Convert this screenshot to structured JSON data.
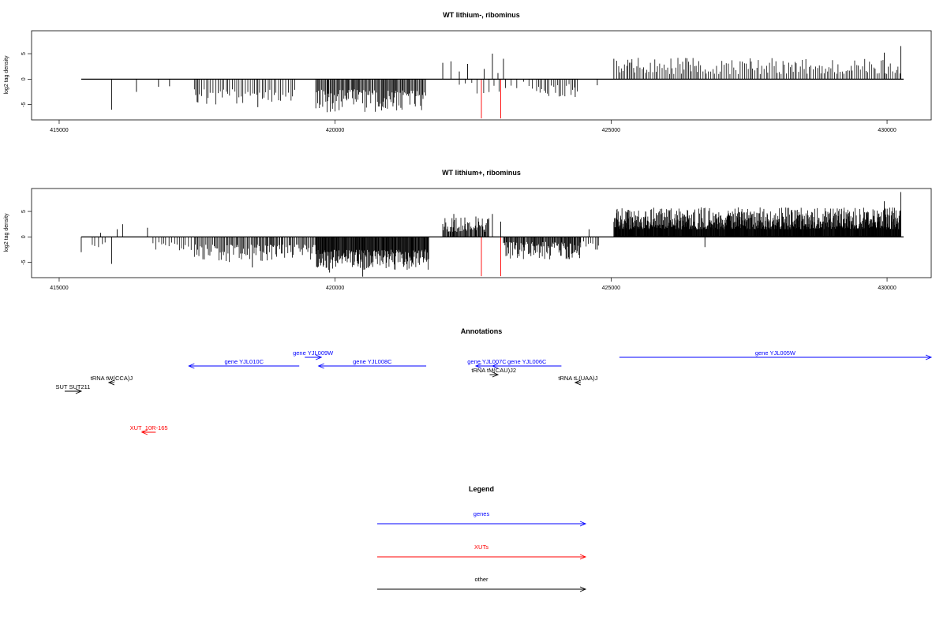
{
  "chart_data": [
    {
      "type": "bar",
      "title": "WT lithium-, ribominus",
      "ylabel": "log2 tag density",
      "xlim": [
        414500,
        430800
      ],
      "ylim": [
        -8,
        9.5
      ],
      "x_ticks": [
        415000,
        420000,
        425000,
        430000
      ],
      "x_tick_labels": [
        "415000",
        "420000",
        "425000",
        "430000"
      ],
      "y_ticks": [
        -5,
        0,
        5
      ],
      "y_tick_labels": [
        "-5",
        "0",
        "5"
      ],
      "baseline_range": [
        415400,
        430300
      ],
      "density_segments": [
        {
          "start": 417450,
          "end": 419300,
          "sign": -1,
          "min": 2.0,
          "max": 5.0,
          "step": 38
        },
        {
          "start": 419650,
          "end": 421650,
          "sign": -1,
          "min": 2.0,
          "max": 6.5,
          "step": 18
        },
        {
          "start": 422250,
          "end": 423650,
          "sign": -1,
          "min": 0.5,
          "max": 3.0,
          "step": 95
        },
        {
          "start": 423650,
          "end": 424400,
          "sign": -1,
          "min": 1.0,
          "max": 3.5,
          "step": 40
        },
        {
          "start": 425100,
          "end": 430250,
          "sign": 1,
          "min": 1.0,
          "max": 4.2,
          "step": 32
        }
      ],
      "series": [
        {
          "color": "#000000",
          "x": [
            415950,
            416400,
            416800,
            417000,
            417500,
            418600,
            419950,
            421950,
            422100,
            422250,
            422400,
            422700,
            422850,
            422950,
            423050,
            424350,
            424750,
            425050,
            429950,
            430250
          ],
          "values": [
            -6.0,
            -2.5,
            -1.5,
            -1.4,
            -4.5,
            -5.5,
            -4.8,
            3.2,
            3.5,
            1.5,
            3.0,
            2.0,
            5.0,
            1.2,
            4.0,
            -3.5,
            -1.2,
            4.0,
            5.2,
            6.5
          ]
        },
        {
          "color": "#ff0000",
          "x": [
            422650,
            423000
          ],
          "values": [
            -7.7,
            -7.7
          ]
        }
      ]
    },
    {
      "type": "bar",
      "title": "WT lithium+, ribominus",
      "ylabel": "log2 tag density",
      "xlim": [
        414500,
        430800
      ],
      "ylim": [
        -8,
        9.5
      ],
      "x_ticks": [
        415000,
        420000,
        425000,
        430000
      ],
      "x_tick_labels": [
        "415000",
        "420000",
        "425000",
        "430000"
      ],
      "y_ticks": [
        -5,
        0,
        5
      ],
      "y_tick_labels": [
        "-5",
        "0",
        "5"
      ],
      "baseline_range": [
        415400,
        430300
      ],
      "density_segments": [
        {
          "start": 415600,
          "end": 415900,
          "sign": -1,
          "min": 1.0,
          "max": 2.5,
          "step": 60
        },
        {
          "start": 416700,
          "end": 417450,
          "sign": -1,
          "min": 1.0,
          "max": 3.5,
          "step": 45
        },
        {
          "start": 417450,
          "end": 419650,
          "sign": -1,
          "min": 1.5,
          "max": 5.0,
          "step": 22
        },
        {
          "start": 419650,
          "end": 421700,
          "sign": -1,
          "min": 2.5,
          "max": 6.5,
          "step": 10
        },
        {
          "start": 421950,
          "end": 422800,
          "sign": 1,
          "min": 1.0,
          "max": 3.8,
          "step": 14
        },
        {
          "start": 423050,
          "end": 424450,
          "sign": -1,
          "min": 1.0,
          "max": 4.5,
          "step": 14
        },
        {
          "start": 424500,
          "end": 424800,
          "sign": -1,
          "min": 0.5,
          "max": 2.5,
          "step": 50
        },
        {
          "start": 425050,
          "end": 430250,
          "sign": 1,
          "min": 1.5,
          "max": 5.8,
          "step": 7
        }
      ],
      "series": [
        {
          "color": "#000000",
          "x": [
            415400,
            415750,
            415950,
            416050,
            416150,
            416600,
            418500,
            419900,
            420500,
            422150,
            422350,
            422550,
            422850,
            423000,
            424600,
            424750,
            426700,
            429950,
            430250
          ],
          "values": [
            -3.0,
            0.8,
            -5.3,
            1.5,
            2.5,
            1.8,
            -6.0,
            -7.0,
            -7.8,
            4.5,
            3.8,
            4.0,
            4.5,
            3.0,
            1.5,
            -2.5,
            -2.0,
            7.0,
            8.8
          ]
        },
        {
          "color": "#ff0000",
          "x": [
            422650,
            423000
          ],
          "values": [
            -7.7,
            -7.7
          ]
        }
      ]
    }
  ],
  "annotations": {
    "title": "Annotations",
    "features": [
      {
        "label": "gene YJL010C",
        "color": "#0000ff",
        "start": 417350,
        "end": 419350,
        "strand": "-",
        "row": 2
      },
      {
        "label": "gene YJL009W",
        "color": "#0000ff",
        "start": 419450,
        "end": 419750,
        "strand": "+",
        "row": 1
      },
      {
        "label": "gene YJL008C",
        "color": "#0000ff",
        "start": 419700,
        "end": 421650,
        "strand": "-",
        "row": 2
      },
      {
        "label": "gene YJL007C",
        "color": "#0000ff",
        "start": 422550,
        "end": 422950,
        "strand": "-",
        "row": 2
      },
      {
        "label": "gene YJL006C",
        "color": "#0000ff",
        "start": 422850,
        "end": 424100,
        "strand": "-",
        "row": 2
      },
      {
        "label": "gene YJL005W",
        "color": "#0000ff",
        "start": 425150,
        "end": 430800,
        "strand": "+",
        "row": 1
      },
      {
        "label": "tRNA tM(CAU)J2",
        "color": "#000000",
        "start": 422800,
        "end": 422950,
        "strand": "+",
        "row": 3
      },
      {
        "label": "tRNA tW(CCA)J",
        "color": "#000000",
        "start": 415900,
        "end": 416000,
        "strand": "-",
        "row": 4
      },
      {
        "label": "tRNA tL(UAA)J",
        "color": "#000000",
        "start": 424350,
        "end": 424450,
        "strand": "-",
        "row": 4
      },
      {
        "label": "SUT SUT211",
        "color": "#000000",
        "start": 415100,
        "end": 415400,
        "strand": "+",
        "row": 5
      },
      {
        "label": "XUT_10R-165",
        "color": "#ff0000",
        "start": 416500,
        "end": 416750,
        "strand": "-",
        "row": 6
      }
    ]
  },
  "legend": {
    "title": "Legend",
    "items": [
      {
        "label": "genes",
        "color": "#0000ff"
      },
      {
        "label": "XUTs",
        "color": "#ff0000"
      },
      {
        "label": "other",
        "color": "#000000"
      }
    ]
  }
}
